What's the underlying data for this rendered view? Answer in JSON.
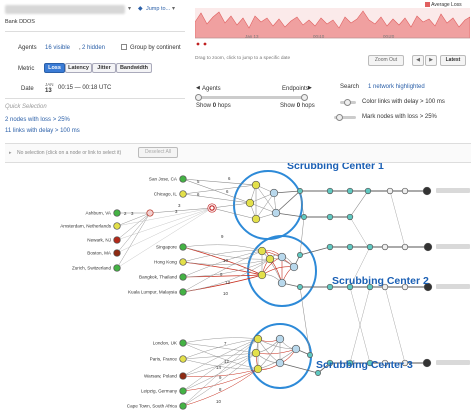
{
  "header": {
    "dropdown_value": "",
    "jump_label": "Jump to...",
    "name": "Bank DDOS"
  },
  "agents": {
    "label": "Agents",
    "visible_text": "16 visible",
    "hidden_text": "2 hidden",
    "group_label": "Group by continent"
  },
  "metric": {
    "label": "Metric",
    "options": [
      "Loss",
      "Latency",
      "Jitter",
      "Bandwidth"
    ],
    "active": "Loss"
  },
  "date": {
    "label": "Date",
    "month": "JAN",
    "day": "13",
    "range": "00:15 — 00:18 UTC"
  },
  "quick_selection": {
    "title": "Quick Selection",
    "items": [
      "2 nodes with loss > 25%",
      "11 links with delay > 100 ms"
    ]
  },
  "timeline": {
    "legend": "Average Loss",
    "ticks": [
      "Jan 13",
      "00:10",
      "00:20"
    ],
    "hint": "Drag to zoom, click to jump to a specific date",
    "zoom_out": "Zoom Out",
    "prev": "◀",
    "next": "▶",
    "latest": "Latest",
    "colors": {
      "fill": "#f0a0a0",
      "line": "#e06060",
      "marker": "#c02020"
    }
  },
  "filters": {
    "agents_label": "Agents",
    "endpoints_label": "Endpoints",
    "show_agents": "Show",
    "agents_hops": "0",
    "hops_word": "hops",
    "show_endpoints": "Show",
    "endpoints_hops": "0",
    "search_label": "Search",
    "search_result": "1 network highlighted",
    "color_links": "Color links with delay > 100 ms",
    "mark_nodes": "Mark nodes with loss > 25%"
  },
  "selection_bar": {
    "text": "No selection (click on a node or link to select it)",
    "deselect": "Deselect All"
  },
  "topology": {
    "centers": [
      "Scrubbing Center 1",
      "Scrubbing Center 2",
      "Scrubbing Center 3"
    ],
    "agents": [
      "San Jose, CA",
      "Chicago, IL",
      "Ashburn, VA",
      "Amsterdam, Netherlands",
      "Newark, NJ",
      "Boston, MA",
      "Zurich, Switzerland",
      "Singapore",
      "Hong Kong",
      "Bangkok, Thailand",
      "Kuala Lumpur, Malaysia",
      "London, UK",
      "Paris, France",
      "Warsaw, Poland",
      "Leipzig, Germany",
      "Cape Town, South Africa"
    ],
    "hop_counts": {
      "san_jose": "5",
      "chicago_a": "6",
      "chicago_b": "6",
      "ashburn_a": "2",
      "ashburn_b": "3",
      "ashburn_c": "3",
      "chain": "3",
      "singapore": "9",
      "hong_kong": "10",
      "bangkok_a": "9",
      "bangkok_b": "13",
      "kuala": "10",
      "london": "7",
      "paris_a": "12",
      "paris_b": "14",
      "warsaw": "9",
      "leipzig": "8",
      "cape_town": "10"
    },
    "colors": {
      "green": "#44b244",
      "yellow": "#e3e04a",
      "red": "#b22a1a",
      "brown": "#8e2a12",
      "teal": "#5fc8c0",
      "light_blue": "#b8d8ec",
      "ring": "#2d8ad8",
      "red_link": "#c83020"
    }
  }
}
